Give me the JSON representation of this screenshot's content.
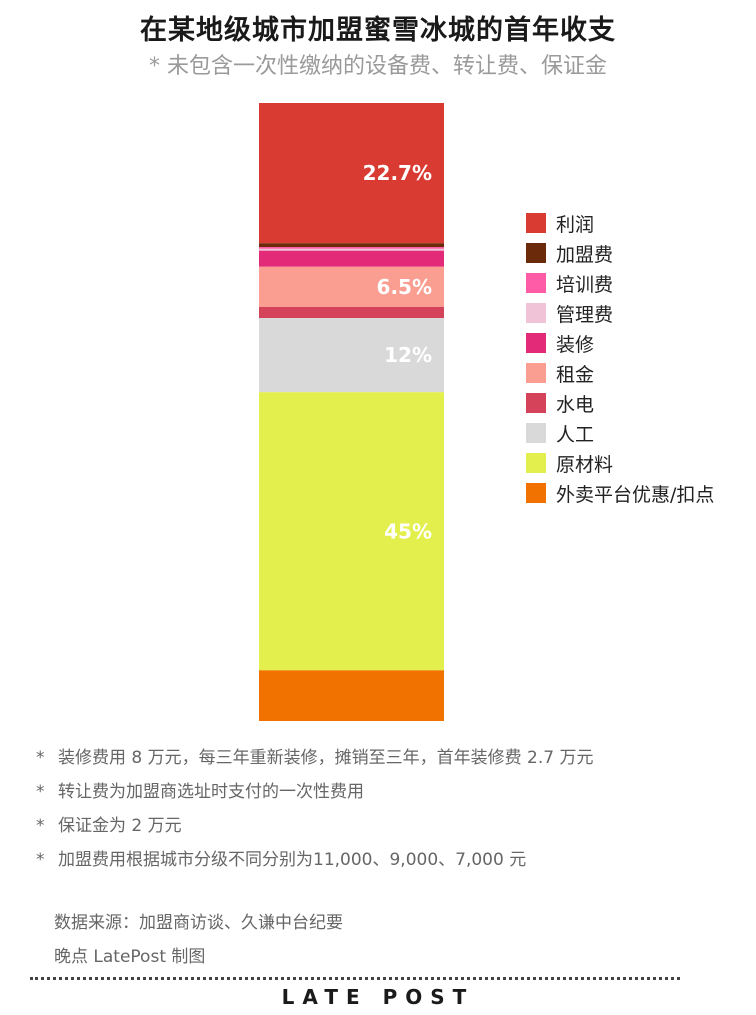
{
  "header": {
    "title": "在某地级城市加盟蜜雪冰城的首年收支",
    "subtitle": "* 未包含一次性缴纳的设备费、转让费、保证金"
  },
  "chart_data": {
    "type": "bar",
    "stacked": true,
    "unit": "%",
    "total": 100,
    "series": [
      {
        "name": "利润",
        "value": 22.7,
        "color": "#d93a32",
        "label": "22.7%"
      },
      {
        "name": "加盟费",
        "value": 0.6,
        "color": "#6b2a0a",
        "label": ""
      },
      {
        "name": "培训费",
        "value": 0.3,
        "color": "#ff5ca8",
        "label": ""
      },
      {
        "name": "管理费",
        "value": 0.3,
        "color": "#f0c3d6",
        "label": ""
      },
      {
        "name": "装修",
        "value": 2.6,
        "color": "#e32a78",
        "label": ""
      },
      {
        "name": "租金",
        "value": 6.5,
        "color": "#fa9e92",
        "label": "6.5%"
      },
      {
        "name": "水电",
        "value": 1.8,
        "color": "#d5435a",
        "label": ""
      },
      {
        "name": "人工",
        "value": 12,
        "color": "#d9d9d9",
        "label": "12%"
      },
      {
        "name": "原材料",
        "value": 45,
        "color": "#e3ef4c",
        "label": "45%"
      },
      {
        "name": "外卖平台优惠/扣点",
        "value": 8.2,
        "color": "#f27200",
        "label": ""
      }
    ]
  },
  "notes": [
    "装修费用 8 万元，每三年重新装修，摊销至三年，首年装修费 2.7 万元",
    "转让费为加盟商选址时支付的一次性费用",
    "保证金为 2 万元",
    "加盟费用根据城市分级不同分别为11,000、9,000、7,000 元"
  ],
  "note_marker": "*",
  "source": {
    "line1": "数据来源：加盟商访谈、久谦中台纪要",
    "line2": "晚点 LatePost 制图"
  },
  "brand": "LATE POST"
}
